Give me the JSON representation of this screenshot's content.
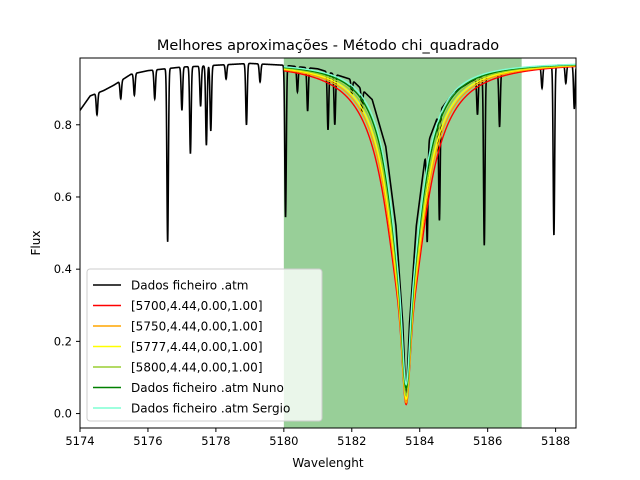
{
  "chart_data": {
    "type": "line",
    "title": "Melhores aproximações - Método chi_quadrado",
    "xlabel": "Wavelenght",
    "ylabel": "Flux",
    "xlim": [
      5174.0,
      5188.6
    ],
    "ylim": [
      -0.04,
      0.985
    ],
    "xticks": [
      5174,
      5176,
      5178,
      5180,
      5182,
      5184,
      5186,
      5188
    ],
    "yticks": [
      0.0,
      0.2,
      0.4,
      0.6,
      0.8
    ],
    "grid": false,
    "legend_position": "lower-left",
    "highlight_region": {
      "x0": 5180.0,
      "x1": 5187.0,
      "color": "#98cf98"
    },
    "line_center": 5183.6,
    "series": [
      {
        "name": "Dados ficheiro .atm",
        "color": "#000000",
        "continuum": [
          [
            5174.0,
            0.84
          ],
          [
            5174.3,
            0.88
          ],
          [
            5174.7,
            0.895
          ],
          [
            5175.0,
            0.91
          ],
          [
            5175.5,
            0.94
          ],
          [
            5176.0,
            0.95
          ],
          [
            5176.5,
            0.955
          ],
          [
            5177.0,
            0.96
          ],
          [
            5177.5,
            0.962
          ],
          [
            5178.0,
            0.965
          ],
          [
            5179.0,
            0.97
          ],
          [
            5180.0,
            0.965
          ],
          [
            5181.0,
            0.955
          ],
          [
            5182.0,
            0.925
          ],
          [
            5182.6,
            0.87
          ],
          [
            5183.0,
            0.74
          ],
          [
            5183.3,
            0.52
          ],
          [
            5183.5,
            0.25
          ],
          [
            5183.6,
            0.03
          ],
          [
            5183.7,
            0.25
          ],
          [
            5183.9,
            0.52
          ],
          [
            5184.2,
            0.74
          ],
          [
            5184.6,
            0.84
          ],
          [
            5185.0,
            0.89
          ],
          [
            5185.5,
            0.92
          ],
          [
            5186.0,
            0.94
          ],
          [
            5187.0,
            0.955
          ],
          [
            5188.0,
            0.965
          ],
          [
            5188.6,
            0.965
          ]
        ],
        "absorption_lines": [
          [
            5174.5,
            0.06
          ],
          [
            5175.2,
            0.05
          ],
          [
            5175.6,
            0.06
          ],
          [
            5176.2,
            0.08
          ],
          [
            5176.58,
            0.48
          ],
          [
            5177.0,
            0.12
          ],
          [
            5177.25,
            0.24
          ],
          [
            5177.55,
            0.11
          ],
          [
            5177.72,
            0.22
          ],
          [
            5177.85,
            0.18
          ],
          [
            5178.3,
            0.04
          ],
          [
            5178.9,
            0.17
          ],
          [
            5179.3,
            0.05
          ],
          [
            5180.05,
            0.42
          ],
          [
            5180.4,
            0.07
          ],
          [
            5180.7,
            0.12
          ],
          [
            5181.3,
            0.16
          ],
          [
            5181.5,
            0.14
          ],
          [
            5182.0,
            0.04
          ],
          [
            5182.3,
            0.06
          ],
          [
            5184.22,
            0.27
          ],
          [
            5184.58,
            0.3
          ],
          [
            5185.7,
            0.1
          ],
          [
            5185.9,
            0.47
          ],
          [
            5186.35,
            0.15
          ],
          [
            5187.6,
            0.06
          ],
          [
            5187.95,
            0.47
          ],
          [
            5188.3,
            0.05
          ],
          [
            5188.55,
            0.12
          ]
        ]
      },
      {
        "name": "[5700,4.44,0.00,1.00]",
        "color": "#ff0000",
        "min": 0.025,
        "gauss_sigma": 0.1,
        "lorentz_gamma": 0.68,
        "lorentz_depth": 0.74
      },
      {
        "name": "[5750,4.44,0.00,1.00]",
        "color": "#ffa500",
        "min": 0.03,
        "gauss_sigma": 0.1,
        "lorentz_gamma": 0.64,
        "lorentz_depth": 0.73
      },
      {
        "name": "[5777,4.44,0.00,1.00]",
        "color": "#ffff00",
        "min": 0.04,
        "gauss_sigma": 0.1,
        "lorentz_gamma": 0.61,
        "lorentz_depth": 0.72
      },
      {
        "name": "[5800,4.44,0.00,1.00]",
        "color": "#9acd32",
        "min": 0.05,
        "gauss_sigma": 0.1,
        "lorentz_gamma": 0.58,
        "lorentz_depth": 0.71
      },
      {
        "name": "Dados ficheiro .atm Nuno",
        "color": "#008000",
        "min": 0.07,
        "gauss_sigma": 0.1,
        "lorentz_gamma": 0.55,
        "lorentz_depth": 0.7
      },
      {
        "name": "Dados ficheiro .atm Sergio",
        "color": "#7fffd4",
        "min": 0.08,
        "gauss_sigma": 0.09,
        "lorentz_gamma": 0.52,
        "lorentz_depth": 0.7
      }
    ]
  }
}
